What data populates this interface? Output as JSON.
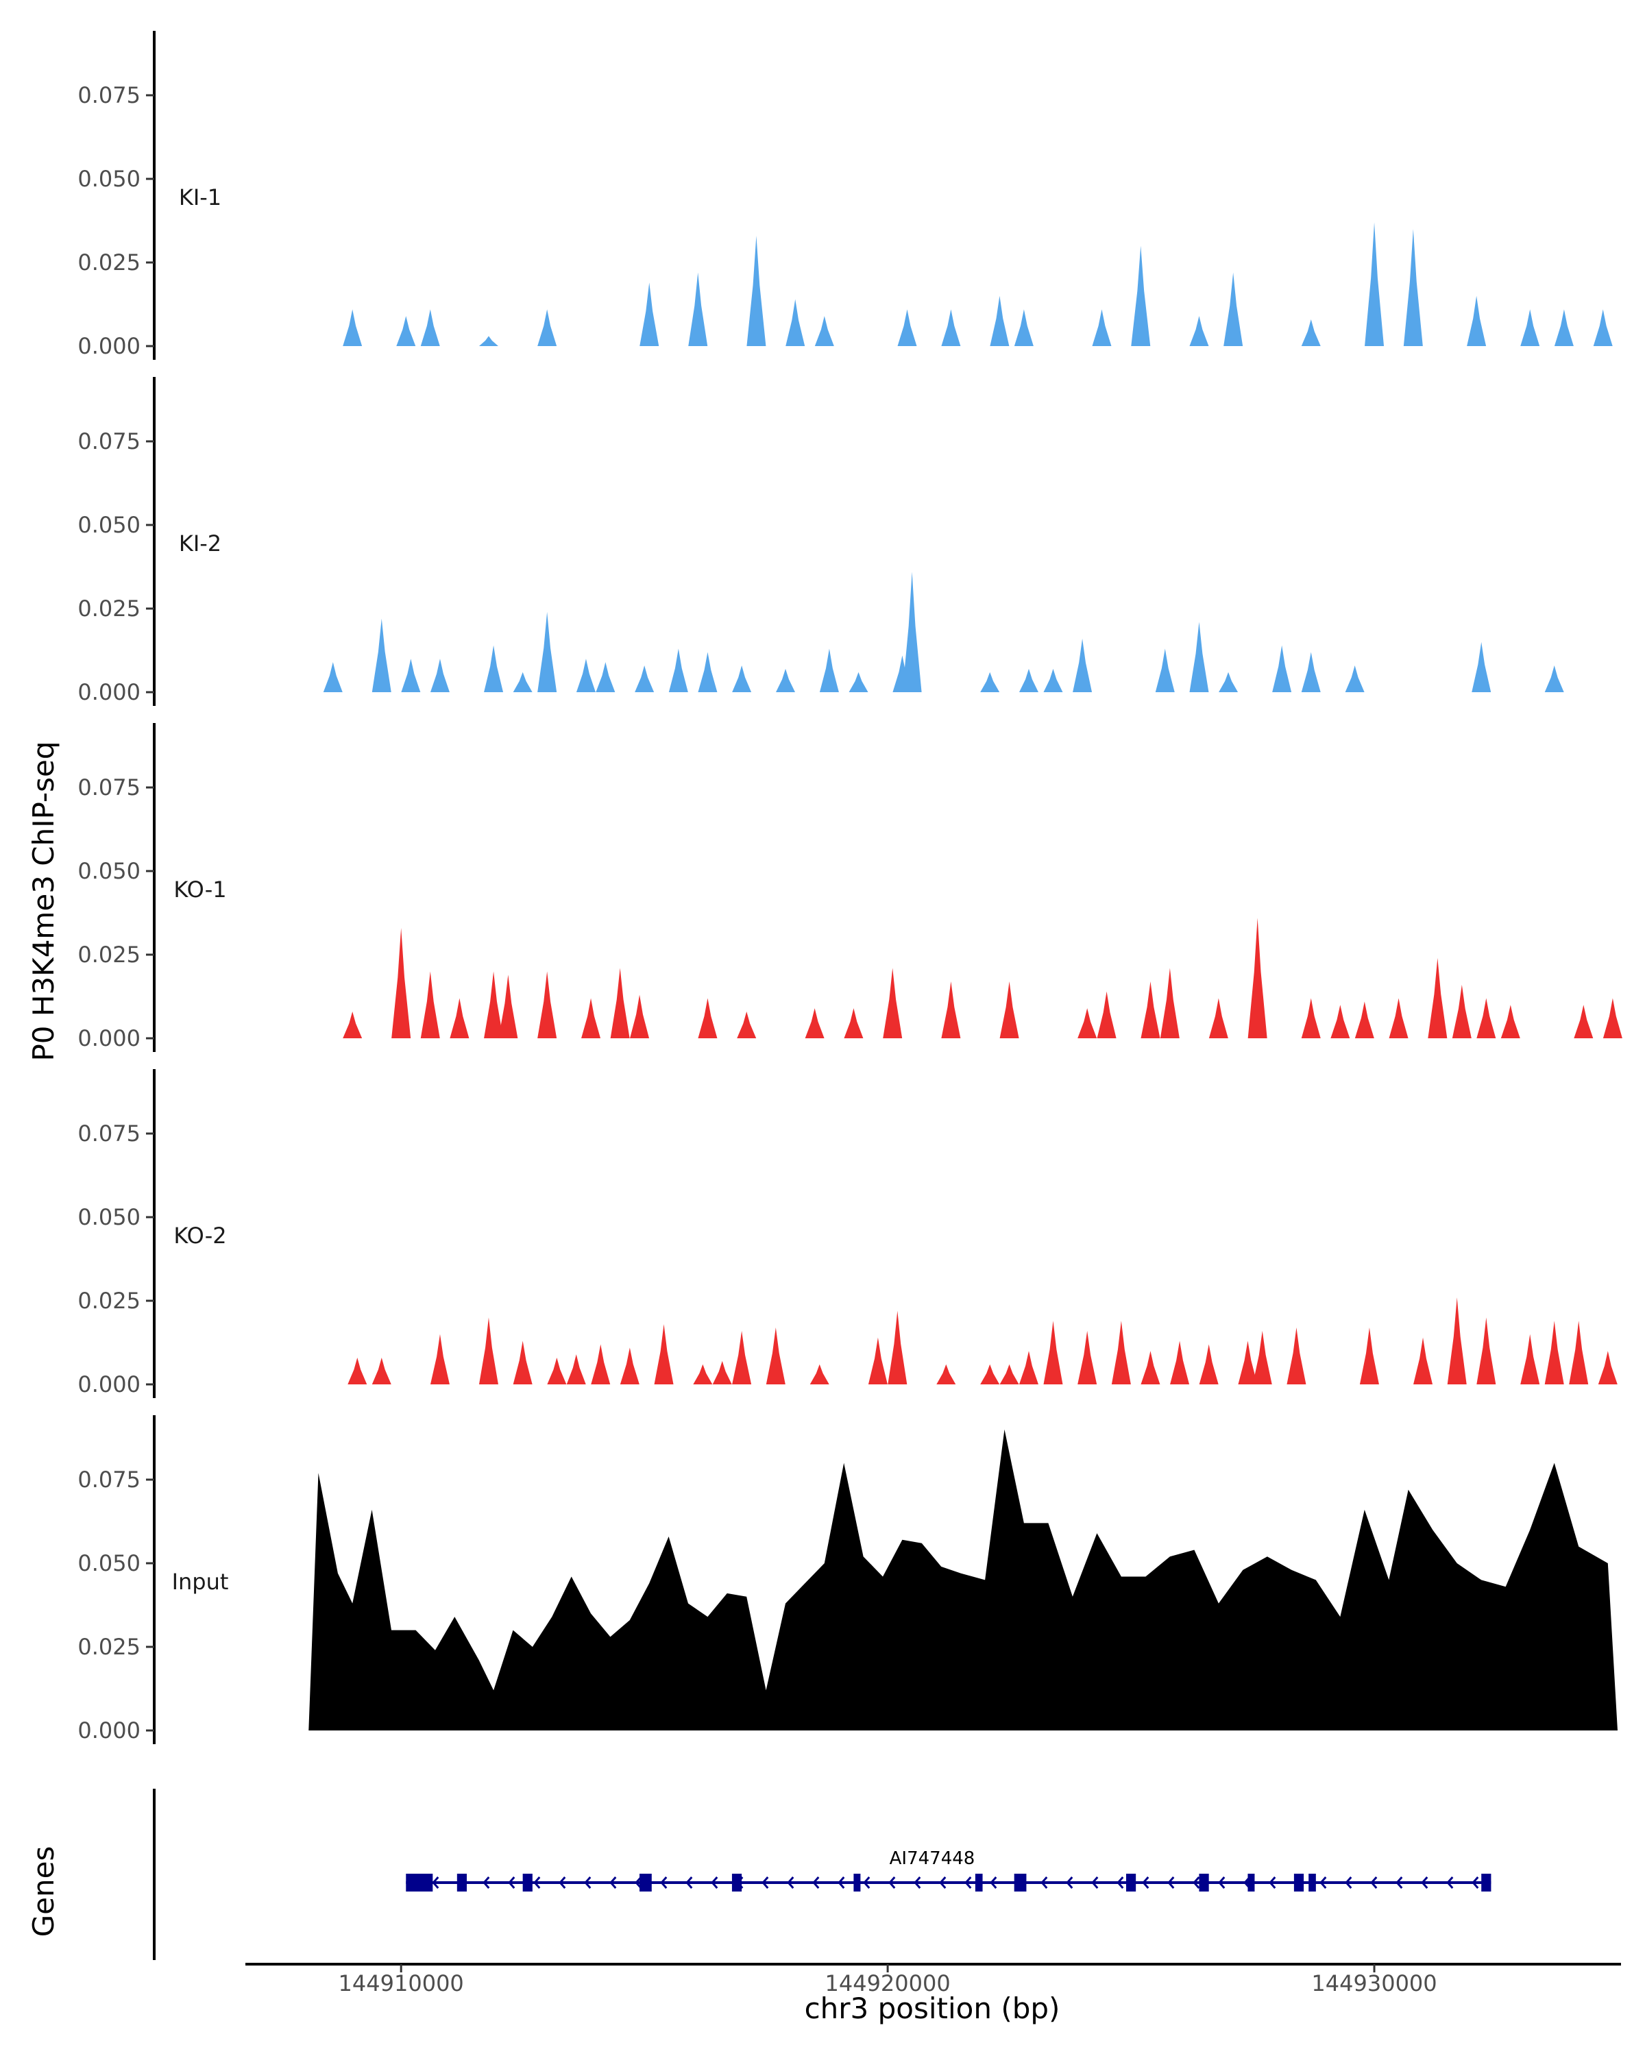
{
  "chart_data": {
    "type": "area",
    "title": "",
    "ylabel": "P0 H3K4me3 ChIP-seq",
    "xlabel": "chr3 position (bp)",
    "xlim": [
      144906800,
      144935000
    ],
    "x_ticks": [
      144910000,
      144920000,
      144930000
    ],
    "x_tick_labels": [
      "144910000",
      "144920000",
      "144930000"
    ],
    "ylim": [
      0,
      0.095
    ],
    "y_ticks": [
      0.0,
      0.025,
      0.05,
      0.075
    ],
    "y_tick_labels": [
      "0.000",
      "0.025",
      "0.050",
      "0.075"
    ],
    "tracks": [
      {
        "name": "KI-1",
        "color": "#56A6EA",
        "peaks": [
          [
            144909000,
            0.011
          ],
          [
            144910100,
            0.009
          ],
          [
            144910600,
            0.011
          ],
          [
            144911800,
            0.003
          ],
          [
            144913000,
            0.011
          ],
          [
            144915100,
            0.019
          ],
          [
            144916100,
            0.022
          ],
          [
            144917300,
            0.033
          ],
          [
            144918100,
            0.014
          ],
          [
            144918700,
            0.009
          ],
          [
            144920400,
            0.011
          ],
          [
            144921300,
            0.011
          ],
          [
            144922300,
            0.015
          ],
          [
            144922800,
            0.011
          ],
          [
            144924400,
            0.011
          ],
          [
            144925200,
            0.03
          ],
          [
            144926400,
            0.009
          ],
          [
            144927100,
            0.022
          ],
          [
            144928700,
            0.008
          ],
          [
            144930000,
            0.037
          ],
          [
            144930800,
            0.035
          ],
          [
            144932100,
            0.015
          ],
          [
            144933200,
            0.011
          ],
          [
            144933900,
            0.011
          ],
          [
            144934700,
            0.011
          ]
        ]
      },
      {
        "name": "KI-2",
        "color": "#56A6EA",
        "peaks": [
          [
            144908600,
            0.009
          ],
          [
            144909600,
            0.022
          ],
          [
            144910200,
            0.01
          ],
          [
            144910800,
            0.01
          ],
          [
            144911900,
            0.014
          ],
          [
            144912500,
            0.006
          ],
          [
            144913000,
            0.024
          ],
          [
            144913800,
            0.01
          ],
          [
            144914200,
            0.009
          ],
          [
            144915000,
            0.008
          ],
          [
            144915700,
            0.013
          ],
          [
            144916300,
            0.012
          ],
          [
            144917000,
            0.008
          ],
          [
            144917900,
            0.007
          ],
          [
            144918800,
            0.013
          ],
          [
            144919400,
            0.006
          ],
          [
            144920300,
            0.011
          ],
          [
            144920500,
            0.036
          ],
          [
            144922100,
            0.006
          ],
          [
            144922900,
            0.007
          ],
          [
            144923400,
            0.007
          ],
          [
            144924000,
            0.016
          ],
          [
            144925700,
            0.013
          ],
          [
            144926400,
            0.021
          ],
          [
            144927000,
            0.006
          ],
          [
            144928100,
            0.014
          ],
          [
            144928700,
            0.012
          ],
          [
            144929600,
            0.008
          ],
          [
            144932200,
            0.015
          ],
          [
            144933700,
            0.008
          ]
        ]
      },
      {
        "name": "KO-1",
        "color": "#EC2D2D",
        "peaks": [
          [
            144909000,
            0.008
          ],
          [
            144910000,
            0.033
          ],
          [
            144910600,
            0.02
          ],
          [
            144911200,
            0.012
          ],
          [
            144911900,
            0.02
          ],
          [
            144912200,
            0.019
          ],
          [
            144913000,
            0.02
          ],
          [
            144913900,
            0.012
          ],
          [
            144914500,
            0.021
          ],
          [
            144914900,
            0.013
          ],
          [
            144916300,
            0.012
          ],
          [
            144917100,
            0.008
          ],
          [
            144918500,
            0.009
          ],
          [
            144919300,
            0.009
          ],
          [
            144920100,
            0.021
          ],
          [
            144921300,
            0.017
          ],
          [
            144922500,
            0.017
          ],
          [
            144924100,
            0.009
          ],
          [
            144924500,
            0.014
          ],
          [
            144925400,
            0.017
          ],
          [
            144925800,
            0.021
          ],
          [
            144926800,
            0.012
          ],
          [
            144927600,
            0.036
          ],
          [
            144928700,
            0.012
          ],
          [
            144929300,
            0.01
          ],
          [
            144929800,
            0.011
          ],
          [
            144930500,
            0.012
          ],
          [
            144931300,
            0.024
          ],
          [
            144931800,
            0.016
          ],
          [
            144932300,
            0.012
          ],
          [
            144932800,
            0.01
          ],
          [
            144934300,
            0.01
          ],
          [
            144934900,
            0.012
          ]
        ]
      },
      {
        "name": "KO-2",
        "color": "#EC2D2D",
        "peaks": [
          [
            144909100,
            0.008
          ],
          [
            144909600,
            0.008
          ],
          [
            144910800,
            0.015
          ],
          [
            144911800,
            0.02
          ],
          [
            144912500,
            0.013
          ],
          [
            144913200,
            0.008
          ],
          [
            144913600,
            0.009
          ],
          [
            144914100,
            0.012
          ],
          [
            144914700,
            0.011
          ],
          [
            144915400,
            0.018
          ],
          [
            144916200,
            0.006
          ],
          [
            144916600,
            0.007
          ],
          [
            144917000,
            0.016
          ],
          [
            144917700,
            0.017
          ],
          [
            144918600,
            0.006
          ],
          [
            144919800,
            0.014
          ],
          [
            144920200,
            0.022
          ],
          [
            144921200,
            0.006
          ],
          [
            144922100,
            0.006
          ],
          [
            144922500,
            0.006
          ],
          [
            144922900,
            0.01
          ],
          [
            144923400,
            0.019
          ],
          [
            144924100,
            0.016
          ],
          [
            144924800,
            0.019
          ],
          [
            144925400,
            0.01
          ],
          [
            144926000,
            0.013
          ],
          [
            144926600,
            0.012
          ],
          [
            144927400,
            0.013
          ],
          [
            144927700,
            0.016
          ],
          [
            144928400,
            0.017
          ],
          [
            144929900,
            0.017
          ],
          [
            144931000,
            0.014
          ],
          [
            144931700,
            0.026
          ],
          [
            144932300,
            0.02
          ],
          [
            144933200,
            0.015
          ],
          [
            144933700,
            0.019
          ],
          [
            144934200,
            0.019
          ],
          [
            144934800,
            0.01
          ]
        ]
      },
      {
        "name": "Input",
        "color": "#000000",
        "peaks": [
          [
            144908300,
            0.077
          ],
          [
            144908700,
            0.047
          ],
          [
            144909000,
            0.038
          ],
          [
            144909400,
            0.066
          ],
          [
            144909800,
            0.03
          ],
          [
            144910300,
            0.03
          ],
          [
            144910700,
            0.024
          ],
          [
            144911100,
            0.034
          ],
          [
            144911600,
            0.021
          ],
          [
            144911900,
            0.012
          ],
          [
            144912300,
            0.03
          ],
          [
            144912700,
            0.025
          ],
          [
            144913100,
            0.034
          ],
          [
            144913500,
            0.046
          ],
          [
            144913900,
            0.035
          ],
          [
            144914300,
            0.028
          ],
          [
            144914700,
            0.033
          ],
          [
            144915100,
            0.044
          ],
          [
            144915500,
            0.058
          ],
          [
            144915900,
            0.038
          ],
          [
            144916300,
            0.034
          ],
          [
            144916700,
            0.041
          ],
          [
            144917100,
            0.04
          ],
          [
            144917500,
            0.012
          ],
          [
            144917900,
            0.038
          ],
          [
            144918300,
            0.044
          ],
          [
            144918700,
            0.05
          ],
          [
            144919100,
            0.08
          ],
          [
            144919500,
            0.052
          ],
          [
            144919900,
            0.046
          ],
          [
            144920300,
            0.057
          ],
          [
            144920700,
            0.056
          ],
          [
            144921100,
            0.049
          ],
          [
            144921500,
            0.047
          ],
          [
            144922000,
            0.045
          ],
          [
            144922400,
            0.09
          ],
          [
            144922800,
            0.062
          ],
          [
            144923300,
            0.062
          ],
          [
            144923800,
            0.04
          ],
          [
            144924300,
            0.059
          ],
          [
            144924800,
            0.046
          ],
          [
            144925300,
            0.046
          ],
          [
            144925800,
            0.052
          ],
          [
            144926300,
            0.054
          ],
          [
            144926800,
            0.038
          ],
          [
            144927300,
            0.048
          ],
          [
            144927800,
            0.052
          ],
          [
            144928300,
            0.048
          ],
          [
            144928800,
            0.045
          ],
          [
            144929300,
            0.034
          ],
          [
            144929800,
            0.066
          ],
          [
            144930300,
            0.045
          ],
          [
            144930700,
            0.072
          ],
          [
            144931200,
            0.06
          ],
          [
            144931700,
            0.05
          ],
          [
            144932200,
            0.045
          ],
          [
            144932700,
            0.043
          ],
          [
            144933200,
            0.06
          ],
          [
            144933700,
            0.08
          ],
          [
            144934200,
            0.055
          ],
          [
            144934800,
            0.05
          ]
        ]
      }
    ],
    "gene_track": {
      "ylabel": "Genes",
      "gene_name": "AI747448",
      "strand": "-",
      "start": 144910100,
      "end": 144932400,
      "exons": [
        [
          144910100,
          144910650
        ],
        [
          144911150,
          144911350
        ],
        [
          144912500,
          144912700
        ],
        [
          144914900,
          144915150
        ],
        [
          144916800,
          144917000
        ],
        [
          144919300,
          144919400
        ],
        [
          144921800,
          144921950
        ],
        [
          144922600,
          144922850
        ],
        [
          144924900,
          144925100
        ],
        [
          144926400,
          144926600
        ],
        [
          144927400,
          144927500
        ],
        [
          144928350,
          144928550
        ],
        [
          144928650,
          144928800
        ],
        [
          144932200,
          144932400
        ]
      ]
    }
  }
}
